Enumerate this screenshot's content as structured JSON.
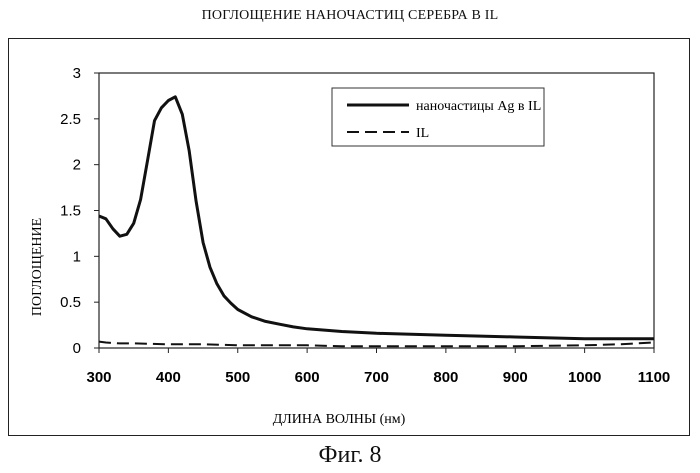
{
  "chart_data": {
    "type": "line",
    "title": "ПОГЛОЩЕНИЕ НАНОЧАСТИЦ СЕРЕБРА В IL",
    "xlabel": "ДЛИНА ВОЛНЫ (нм)",
    "ylabel": "ПОГЛОЩЕНИЕ",
    "xlim": [
      300,
      1100
    ],
    "ylim": [
      0,
      3
    ],
    "x_ticks": [
      300,
      400,
      500,
      600,
      700,
      800,
      900,
      1000,
      1100
    ],
    "y_ticks": [
      0,
      0.5,
      1,
      1.5,
      2,
      2.5,
      3
    ],
    "y_tick_labels": [
      "0",
      "0.5",
      "1",
      "1.5",
      "2",
      "2.5",
      "3"
    ],
    "grid": false,
    "legend_position": "top-right",
    "series": [
      {
        "name": "наночастицы Ag в IL",
        "style": "solid",
        "color": "#111111",
        "x": [
          300,
          310,
          320,
          330,
          340,
          350,
          360,
          370,
          380,
          390,
          400,
          410,
          420,
          430,
          440,
          450,
          460,
          470,
          480,
          490,
          500,
          520,
          540,
          560,
          580,
          600,
          650,
          700,
          750,
          800,
          850,
          900,
          950,
          1000,
          1050,
          1100
        ],
        "y": [
          1.44,
          1.41,
          1.3,
          1.22,
          1.24,
          1.36,
          1.62,
          2.05,
          2.48,
          2.62,
          2.7,
          2.74,
          2.55,
          2.15,
          1.6,
          1.15,
          0.88,
          0.7,
          0.57,
          0.49,
          0.42,
          0.34,
          0.29,
          0.26,
          0.23,
          0.21,
          0.18,
          0.16,
          0.15,
          0.14,
          0.13,
          0.12,
          0.11,
          0.1,
          0.1,
          0.1
        ]
      },
      {
        "name": "IL",
        "style": "dashed",
        "color": "#111111",
        "x": [
          300,
          310,
          330,
          350,
          400,
          450,
          500,
          550,
          600,
          650,
          700,
          800,
          900,
          1000,
          1050,
          1100
        ],
        "y": [
          0.07,
          0.06,
          0.05,
          0.05,
          0.04,
          0.04,
          0.03,
          0.03,
          0.03,
          0.02,
          0.02,
          0.02,
          0.02,
          0.03,
          0.04,
          0.06
        ]
      }
    ]
  },
  "caption": "Фиг. 8"
}
